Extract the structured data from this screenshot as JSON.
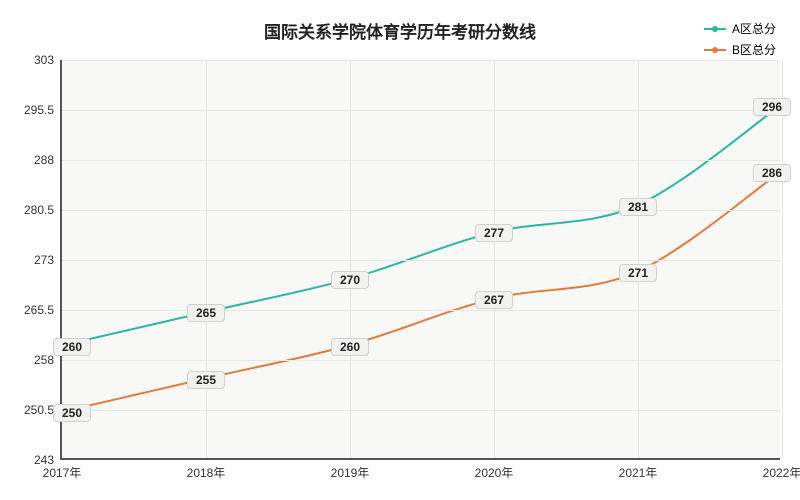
{
  "chart": {
    "type": "line",
    "title": "国际关系学院体育学历年考研分数线",
    "title_fontsize": 17,
    "title_color": "#222222",
    "background_color": "#ffffff",
    "plot_background": "#f8f8f6",
    "grid_color": "#e6e6e2",
    "axis_color": "#555555",
    "x": {
      "categories": [
        "2017年",
        "2018年",
        "2019年",
        "2020年",
        "2021年",
        "2022年"
      ],
      "fontsize": 12
    },
    "y": {
      "min": 243,
      "max": 303,
      "step": 7.5,
      "ticks": [
        243,
        250.5,
        258,
        265.5,
        273,
        280.5,
        288,
        295.5,
        303
      ],
      "fontsize": 12
    },
    "series": [
      {
        "name": "A区总分",
        "color": "#2ab6a0",
        "values": [
          260,
          265,
          270,
          277,
          281,
          296
        ],
        "line_width": 2,
        "marker_radius": 3
      },
      {
        "name": "B区总分",
        "color": "#e07b3d",
        "values": [
          250,
          255,
          260,
          267,
          271,
          286
        ],
        "line_width": 2,
        "marker_radius": 3
      }
    ],
    "label_style": {
      "bg": "#f2f2f0",
      "border": "#d0d0ce",
      "fontsize": 12
    }
  }
}
